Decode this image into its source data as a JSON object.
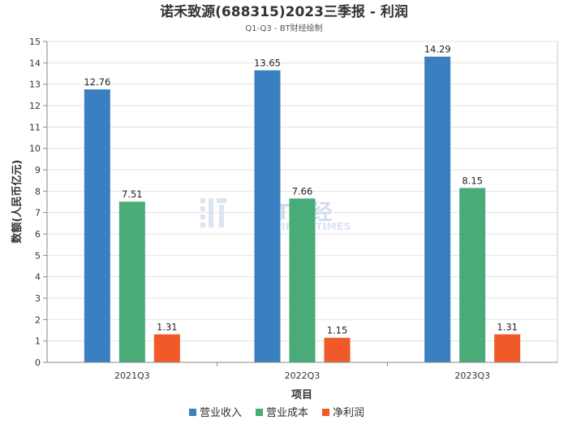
{
  "chart_data": {
    "type": "bar",
    "title": "诺禾致源(688315)2023三季报 - 利润",
    "subtitle": "Q1-Q3 - BT财经绘制",
    "xlabel": "项目",
    "ylabel": "数额(人民币亿元)",
    "ylim": [
      0,
      15
    ],
    "yticks": [
      0,
      1,
      2,
      3,
      4,
      5,
      6,
      7,
      8,
      9,
      10,
      11,
      12,
      13,
      14,
      15
    ],
    "categories": [
      "2021Q3",
      "2022Q3",
      "2023Q3"
    ],
    "series": [
      {
        "name": "营业收入",
        "color": "#3a7fc1",
        "values": [
          12.76,
          13.65,
          14.29
        ]
      },
      {
        "name": "营业成本",
        "color": "#48ab78",
        "values": [
          7.51,
          7.66,
          8.15
        ]
      },
      {
        "name": "净利润",
        "color": "#f05a28",
        "values": [
          1.31,
          1.15,
          1.31
        ]
      }
    ],
    "grid": true,
    "legend_position": "bottom-center",
    "watermark": {
      "logo_text": "BT财经",
      "sub_text": "BUSINESSTIMES"
    }
  }
}
